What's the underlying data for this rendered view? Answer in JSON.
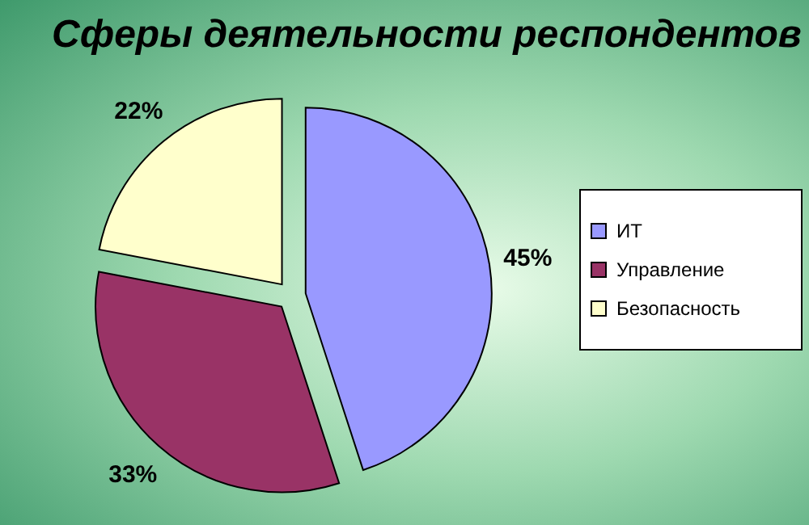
{
  "chart_data": {
    "type": "pie",
    "title": "Сферы деятельности респондентов",
    "categories": [
      "ИТ",
      "Управление",
      "Безопасность"
    ],
    "values": [
      45,
      33,
      22
    ],
    "value_labels": [
      "45%",
      "33%",
      "22%"
    ],
    "colors": [
      "#9999ff",
      "#993366",
      "#ffffcc"
    ],
    "legend": "right"
  }
}
